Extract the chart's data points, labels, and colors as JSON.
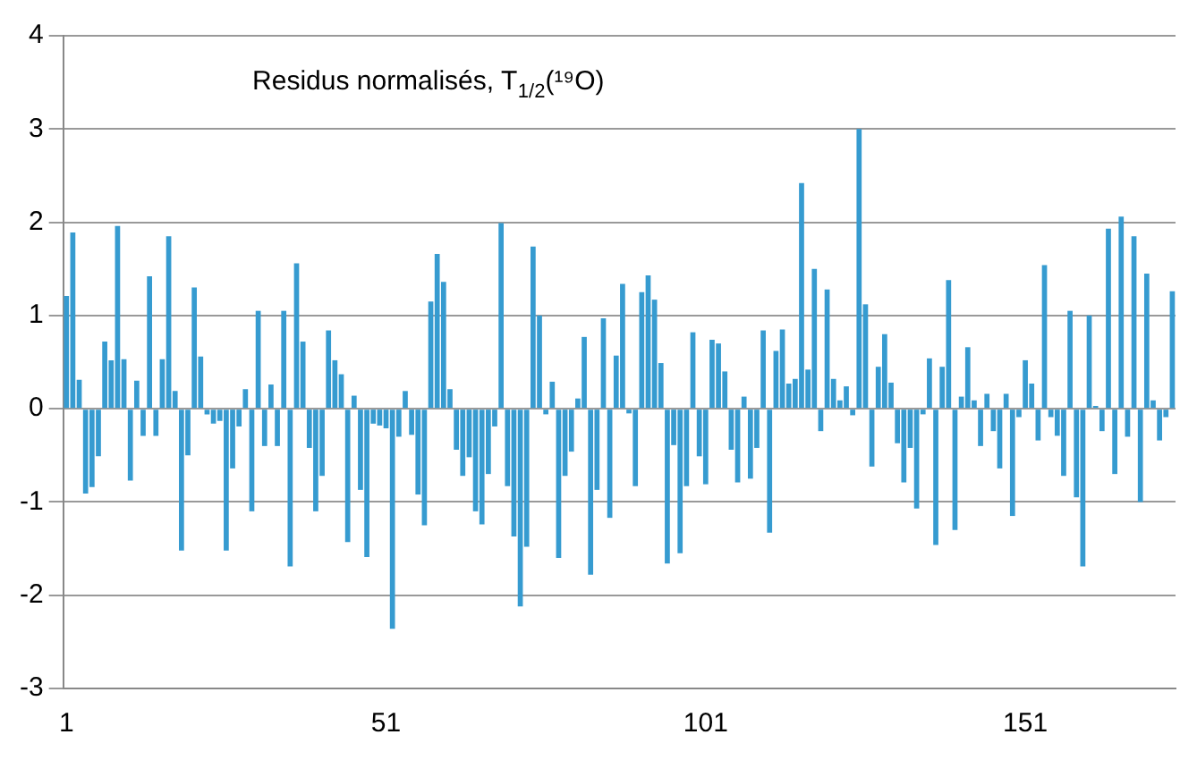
{
  "chart_data": {
    "type": "bar",
    "title": "Residus normalisés, T$_{1/2}$(¹⁹O)",
    "categories": [
      "1",
      null,
      null,
      null,
      null,
      null,
      null,
      null,
      null,
      null,
      null,
      null,
      null,
      null,
      null,
      null,
      null,
      null,
      null,
      null,
      null,
      null,
      null,
      null,
      null,
      null,
      null,
      null,
      null,
      null,
      null,
      null,
      null,
      null,
      null,
      null,
      null,
      null,
      null,
      null,
      null,
      null,
      null,
      null,
      null,
      null,
      null,
      null,
      null,
      null,
      "51",
      null,
      null,
      null,
      null,
      null,
      null,
      null,
      null,
      null,
      null,
      null,
      null,
      null,
      null,
      null,
      null,
      null,
      null,
      null,
      null,
      null,
      null,
      null,
      null,
      null,
      null,
      null,
      null,
      null,
      null,
      null,
      null,
      null,
      null,
      null,
      null,
      null,
      null,
      null,
      null,
      null,
      null,
      null,
      null,
      null,
      null,
      null,
      null,
      null,
      "101",
      null,
      null,
      null,
      null,
      null,
      null,
      null,
      null,
      null,
      null,
      null,
      null,
      null,
      null,
      null,
      null,
      null,
      null,
      null,
      null,
      null,
      null,
      null,
      null,
      null,
      null,
      null,
      null,
      null,
      null,
      null,
      null,
      null,
      null,
      null,
      null,
      null,
      null,
      null,
      null,
      null,
      null,
      null,
      null,
      null,
      null,
      null,
      null,
      null,
      "151",
      null,
      null,
      null,
      null,
      null,
      null,
      null,
      null,
      null,
      null,
      null,
      null,
      null,
      null,
      null,
      null,
      null,
      null,
      null,
      null,
      null,
      null,
      null
    ],
    "values": [
      1.21,
      1.89,
      0.31,
      -0.91,
      -0.84,
      -0.51,
      0.72,
      0.52,
      1.96,
      0.53,
      -0.77,
      0.3,
      -0.29,
      1.42,
      -0.29,
      0.53,
      1.85,
      0.19,
      -1.52,
      -0.5,
      1.3,
      0.56,
      -0.06,
      -0.16,
      -0.13,
      -1.52,
      -0.64,
      -0.19,
      0.21,
      -1.1,
      1.05,
      -0.4,
      0.26,
      -0.4,
      1.05,
      -1.69,
      1.56,
      0.72,
      -0.42,
      -1.1,
      -0.72,
      0.84,
      0.52,
      0.37,
      -1.43,
      0.14,
      -0.87,
      -1.59,
      -0.16,
      -0.18,
      -0.21,
      -2.36,
      -0.3,
      0.19,
      -0.28,
      -0.92,
      -1.25,
      1.15,
      1.66,
      1.36,
      0.21,
      -0.44,
      -0.72,
      -0.52,
      -1.1,
      -1.24,
      -0.7,
      -0.19,
      1.99,
      -0.83,
      -1.37,
      -2.12,
      -1.48,
      1.74,
      1.0,
      -0.06,
      0.29,
      -1.6,
      -0.72,
      -0.46,
      0.11,
      0.77,
      -1.78,
      -0.87,
      0.97,
      -1.17,
      0.57,
      1.34,
      -0.05,
      -0.83,
      1.25,
      1.43,
      1.17,
      0.49,
      -1.66,
      -0.39,
      -1.55,
      -0.83,
      0.82,
      -0.51,
      -0.81,
      0.74,
      0.7,
      0.4,
      -0.44,
      -0.79,
      0.13,
      -0.75,
      -0.42,
      0.84,
      -1.33,
      0.62,
      0.85,
      0.27,
      0.32,
      2.42,
      0.42,
      1.5,
      -0.24,
      1.28,
      0.32,
      0.09,
      0.24,
      -0.07,
      3.0,
      1.12,
      -0.62,
      0.45,
      0.8,
      0.28,
      -0.37,
      -0.79,
      -0.42,
      -1.07,
      -0.06,
      0.54,
      -1.46,
      0.45,
      1.38,
      -1.3,
      0.13,
      0.66,
      0.09,
      -0.4,
      0.16,
      -0.24,
      -0.64,
      0.16,
      -1.15,
      -0.09,
      0.52,
      0.27,
      -0.34,
      1.54,
      -0.09,
      -0.29,
      -0.72,
      1.05,
      -0.95,
      -1.69,
      1.0,
      0.03,
      -0.24,
      1.93,
      -0.7,
      2.06,
      -0.3,
      1.85,
      -1.0,
      1.45,
      0.09,
      -0.34,
      -0.09,
      1.26
    ],
    "color": "#369bd0",
    "ylim": [
      -3,
      4
    ],
    "yticks": [
      -3,
      -2,
      -1,
      0,
      1,
      2,
      3,
      4
    ],
    "grid": "y",
    "legend": false
  }
}
